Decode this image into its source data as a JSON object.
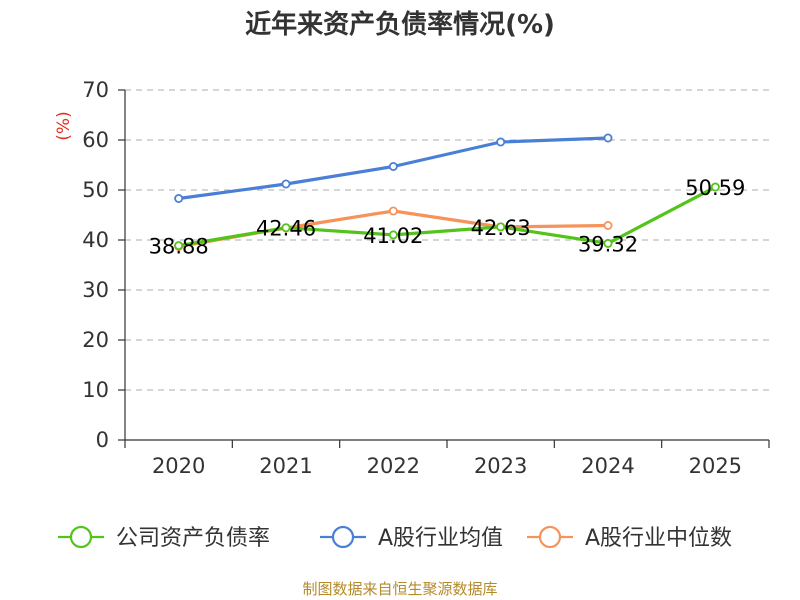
{
  "chart_data": {
    "type": "line",
    "title": "近年来资产负债率情况(%)",
    "ylabel": "(%)",
    "xlabel": "",
    "categories": [
      "2020",
      "2021",
      "2022",
      "2023",
      "2024",
      "2025"
    ],
    "ylim": [
      0,
      70
    ],
    "yticks": [
      0,
      10,
      20,
      30,
      40,
      50,
      60,
      70
    ],
    "grid": true,
    "legend_position": "bottom",
    "series": [
      {
        "name": "公司资产负债率",
        "color": "#52c41a",
        "values": [
          38.88,
          42.46,
          41.02,
          42.63,
          39.32,
          50.59
        ],
        "labels": [
          "38.88",
          "42.46",
          "41.02",
          "42.63",
          "39.32",
          "50.59"
        ],
        "show_labels": true
      },
      {
        "name": "A股行业均值",
        "color": "#4a7fd6",
        "values": [
          48.3,
          51.2,
          54.7,
          59.6,
          60.4,
          null
        ],
        "show_labels": false
      },
      {
        "name": "A股行业中位数",
        "color": "#f5935a",
        "values": [
          38.7,
          42.4,
          45.8,
          42.6,
          42.9,
          null
        ],
        "show_labels": false
      }
    ],
    "source": "制图数据来自恒生聚源数据库"
  }
}
